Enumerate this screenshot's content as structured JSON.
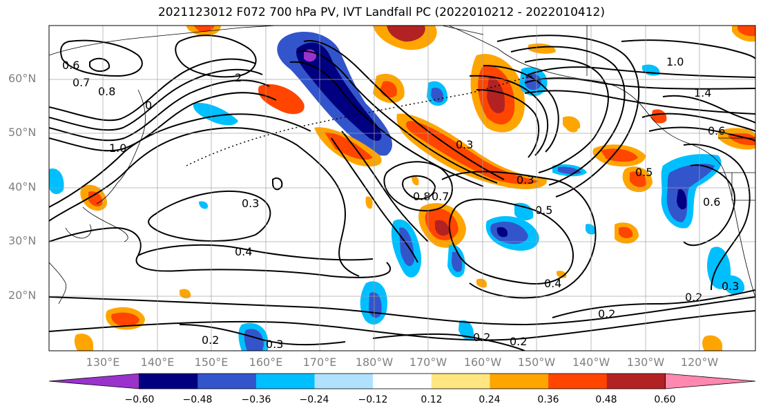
{
  "title": "2021123012 F072 700 hPa PV, IVT Landfall PC (2022010212 - 2022010412)",
  "lat_labels": [
    "60°N",
    "50°N",
    "40°N",
    "30°N",
    "20°N"
  ],
  "lon_labels": [
    "130°E",
    "140°E",
    "150°E",
    "160°E",
    "170°E",
    "180°W",
    "170°W",
    "160°W",
    "150°W",
    "140°W",
    "130°W",
    "120°W"
  ],
  "colorbar": {
    "colors": [
      "#9933cc",
      "#000080",
      "#3355cc",
      "#00bfff",
      "#b0e2ff",
      "#ffffff",
      "#ffe680",
      "#ffa500",
      "#ff4500",
      "#b22222",
      "#ff88b0"
    ],
    "ticks": [
      "−0.60",
      "−0.48",
      "−0.36",
      "−0.24",
      "−0.12",
      "0.12",
      "0.24",
      "0.36",
      "0.48",
      "0.60"
    ]
  },
  "contour_labels": [
    "0.6",
    "0.7",
    "0.8",
    "1.0",
    "2",
    "0",
    "0.3",
    "0.4",
    "0.2",
    "0.5",
    "0.8",
    "0.7",
    "1.4",
    "0.6",
    "1.0",
    "0.5",
    "0.6",
    "0.3",
    "0.2",
    "0.3",
    "0.3",
    "0.4",
    "0.3",
    "0.2",
    "0.2",
    "0.2"
  ]
}
